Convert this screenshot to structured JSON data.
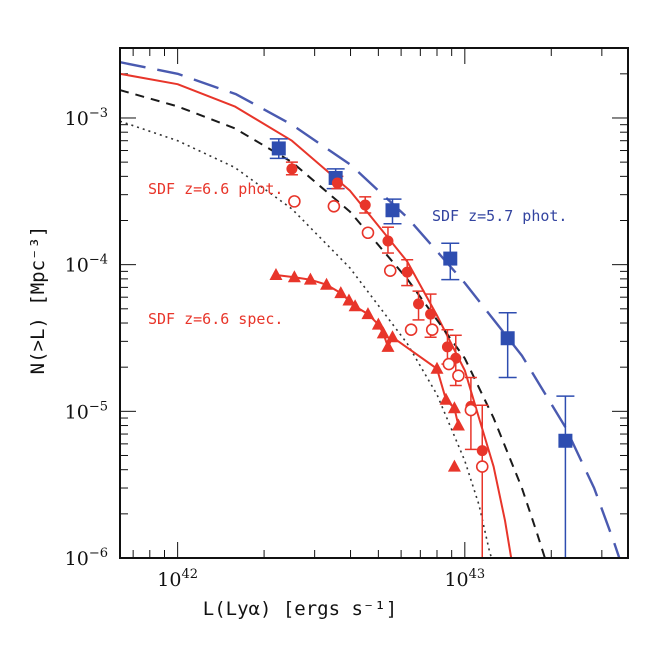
{
  "chart_data": {
    "type": "scatter",
    "title": "",
    "xlabel": "L(Lyα) [ergs s⁻¹]",
    "ylabel": "N(>L) [Mpc⁻³]",
    "x_scale": "log",
    "y_scale": "log",
    "xlim": [
      6.3e+41,
      3.7e+43
    ],
    "ylim": [
      1e-06,
      0.003
    ],
    "x_tick_labels": [
      {
        "value": 1e+42,
        "base": "10",
        "exp": "42"
      },
      {
        "value": 1e+43,
        "base": "10",
        "exp": "43"
      }
    ],
    "y_tick_labels": [
      {
        "value": 0.001,
        "base": "10",
        "exp": "−3"
      },
      {
        "value": 0.0001,
        "base": "10",
        "exp": "−4"
      },
      {
        "value": 1e-05,
        "base": "10",
        "exp": "−5"
      },
      {
        "value": 1e-06,
        "base": "10",
        "exp": "−6"
      }
    ],
    "annotations": [
      {
        "text": "SDF z=6.6 phot.",
        "color": "#e8352a"
      },
      {
        "text": "SDF z=5.7 phot.",
        "color": "#3344a0"
      },
      {
        "text": "SDF z=6.6 spec.",
        "color": "#e8352a"
      }
    ],
    "series": [
      {
        "name": "SDF z=5.7 phot.",
        "kind": "points",
        "marker": "square",
        "color": "#2e4db0",
        "points": [
          {
            "x": 2.25e+42,
            "y": 0.00062,
            "ylo": 0.00053,
            "yhi": 0.00072
          },
          {
            "x": 3.55e+42,
            "y": 0.00039,
            "ylo": 0.00033,
            "yhi": 0.00045
          },
          {
            "x": 5.6e+42,
            "y": 0.000235,
            "ylo": 0.00019,
            "yhi": 0.00028
          },
          {
            "x": 8.9e+42,
            "y": 0.00011,
            "ylo": 7.9e-05,
            "yhi": 0.00014
          },
          {
            "x": 1.41e+43,
            "y": 3.15e-05,
            "ylo": 1.7e-05,
            "yhi": 4.7e-05
          },
          {
            "x": 2.24e+43,
            "y": 6.3e-06,
            "ylo": 1e-06,
            "yhi": 1.27e-05
          }
        ]
      },
      {
        "name": "SDF z=6.6 phot. (filled)",
        "kind": "points",
        "marker": "circle-filled",
        "color": "#e8352a",
        "points": [
          {
            "x": 2.5e+42,
            "y": 0.00045,
            "ylo": 0.00041,
            "yhi": 0.0005
          },
          {
            "x": 3.6e+42,
            "y": 0.00036,
            "ylo": 0.00033,
            "yhi": 0.0004
          },
          {
            "x": 4.5e+42,
            "y": 0.000255,
            "ylo": 0.000225,
            "yhi": 0.00029
          },
          {
            "x": 5.4e+42,
            "y": 0.000145,
            "ylo": 0.00012,
            "yhi": 0.00018
          },
          {
            "x": 6.3e+42,
            "y": 8.9e-05,
            "ylo": 7.2e-05,
            "yhi": 0.000108
          },
          {
            "x": 6.9e+42,
            "y": 5.4e-05,
            "ylo": 4.2e-05,
            "yhi": 6.6e-05
          },
          {
            "x": 7.6e+42,
            "y": 4.6e-05,
            "ylo": 3.2e-05,
            "yhi": 6.3e-05
          },
          {
            "x": 8.7e+42,
            "y": 2.75e-05,
            "ylo": 2.1e-05,
            "yhi": 3.6e-05
          },
          {
            "x": 9.3e+42,
            "y": 2.3e-05,
            "ylo": 1.5e-05,
            "yhi": 3.3e-05
          },
          {
            "x": 1.05e+43,
            "y": 1.08e-05,
            "ylo": 5.5e-06,
            "yhi": 1.7e-05
          },
          {
            "x": 1.15e+43,
            "y": 5.4e-06,
            "ylo": 1e-06,
            "yhi": 1.1e-05
          }
        ]
      },
      {
        "name": "SDF z=6.6 phot. (open)",
        "kind": "points",
        "marker": "circle-open",
        "color": "#e8352a",
        "points": [
          {
            "x": 2.55e+42,
            "y": 0.00027
          },
          {
            "x": 3.5e+42,
            "y": 0.00025
          },
          {
            "x": 4.6e+42,
            "y": 0.000165
          },
          {
            "x": 5.5e+42,
            "y": 9.1e-05
          },
          {
            "x": 6.5e+42,
            "y": 3.6e-05
          },
          {
            "x": 7.7e+42,
            "y": 3.6e-05
          },
          {
            "x": 8.8e+42,
            "y": 2.1e-05
          },
          {
            "x": 9.5e+42,
            "y": 1.75e-05
          },
          {
            "x": 1.05e+43,
            "y": 1.02e-05
          },
          {
            "x": 1.15e+43,
            "y": 4.2e-06
          }
        ]
      },
      {
        "name": "SDF z=6.6 spec.",
        "kind": "points",
        "marker": "triangle",
        "color": "#e8352a",
        "points": [
          {
            "x": 2.2e+42,
            "y": 8.5e-05
          },
          {
            "x": 2.55e+42,
            "y": 8.2e-05
          },
          {
            "x": 2.9e+42,
            "y": 7.9e-05
          },
          {
            "x": 3.3e+42,
            "y": 7.3e-05
          },
          {
            "x": 3.7e+42,
            "y": 6.4e-05
          },
          {
            "x": 3.95e+42,
            "y": 5.7e-05
          },
          {
            "x": 4.15e+42,
            "y": 5.2e-05
          },
          {
            "x": 4.6e+42,
            "y": 4.6e-05
          },
          {
            "x": 5e+42,
            "y": 3.9e-05
          },
          {
            "x": 5.2e+42,
            "y": 3.4e-05
          },
          {
            "x": 5.4e+42,
            "y": 2.75e-05
          },
          {
            "x": 5.6e+42,
            "y": 3.2e-05
          },
          {
            "x": 8e+42,
            "y": 1.95e-05
          },
          {
            "x": 8.6e+42,
            "y": 1.2e-05
          },
          {
            "x": 9.2e+42,
            "y": 1.05e-05
          },
          {
            "x": 9.5e+42,
            "y": 8e-06
          },
          {
            "x": 9.2e+42,
            "y": 4.2e-06
          }
        ]
      },
      {
        "name": "z=5.7 model (long dash)",
        "kind": "line",
        "style": "longdash",
        "color": "#4a5ab0",
        "points": [
          [
            6.3e+41,
            0.0024
          ],
          [
            1e+42,
            0.002
          ],
          [
            1.6e+42,
            0.00145
          ],
          [
            2.5e+42,
            0.0009
          ],
          [
            4e+42,
            0.00048
          ],
          [
            6.3e+42,
            0.00021
          ],
          [
            1e+43,
            7.5e-05
          ],
          [
            1.58e+43,
            2.4e-05
          ],
          [
            2.24e+43,
            7.8e-06
          ],
          [
            2.82e+43,
            3e-06
          ],
          [
            3.3e+43,
            1.3e-06
          ],
          [
            3.45e+43,
            1e-06
          ]
        ]
      },
      {
        "name": "z=6.6 model (solid)",
        "kind": "line",
        "style": "solid",
        "color": "#e8352a",
        "points": [
          [
            6.3e+41,
            0.002
          ],
          [
            1e+42,
            0.0017
          ],
          [
            1.58e+42,
            0.0012
          ],
          [
            2.5e+42,
            0.0007
          ],
          [
            3.98e+42,
            0.00032
          ],
          [
            6.3e+42,
            0.000105
          ],
          [
            8e+42,
            4.5e-05
          ],
          [
            1e+43,
            1.9e-05
          ],
          [
            1.12e+43,
            9e-06
          ],
          [
            1.26e+43,
            4.2e-06
          ],
          [
            1.38e+43,
            1.8e-06
          ],
          [
            1.45e+43,
            1e-06
          ]
        ]
      },
      {
        "name": "model (short dash)",
        "kind": "line",
        "style": "shortdash",
        "color": "#1a1a1a",
        "points": [
          [
            6.3e+41,
            0.00155
          ],
          [
            1e+42,
            0.0012
          ],
          [
            1.58e+42,
            0.00085
          ],
          [
            2.5e+42,
            0.0005
          ],
          [
            3.98e+42,
            0.00023
          ],
          [
            6.3e+42,
            8e-05
          ],
          [
            1e+43,
            2.3e-05
          ],
          [
            1.26e+43,
            9e-06
          ],
          [
            1.58e+43,
            3e-06
          ],
          [
            1.78e+43,
            1.5e-06
          ],
          [
            1.9e+43,
            1e-06
          ]
        ]
      },
      {
        "name": "model (dotted)",
        "kind": "line",
        "style": "dotted",
        "color": "#333333",
        "points": [
          [
            6.3e+41,
            0.00095
          ],
          [
            1e+42,
            0.0007
          ],
          [
            1.58e+42,
            0.00046
          ],
          [
            2.5e+42,
            0.00024
          ],
          [
            3.98e+42,
            9.5e-05
          ],
          [
            6.3e+42,
            2.9e-05
          ],
          [
            8e+42,
            1.3e-05
          ],
          [
            1e+43,
            4.6e-06
          ],
          [
            1.12e+43,
            2.3e-06
          ],
          [
            1.22e+43,
            1.1e-06
          ],
          [
            1.24e+43,
            1e-06
          ]
        ]
      }
    ]
  }
}
